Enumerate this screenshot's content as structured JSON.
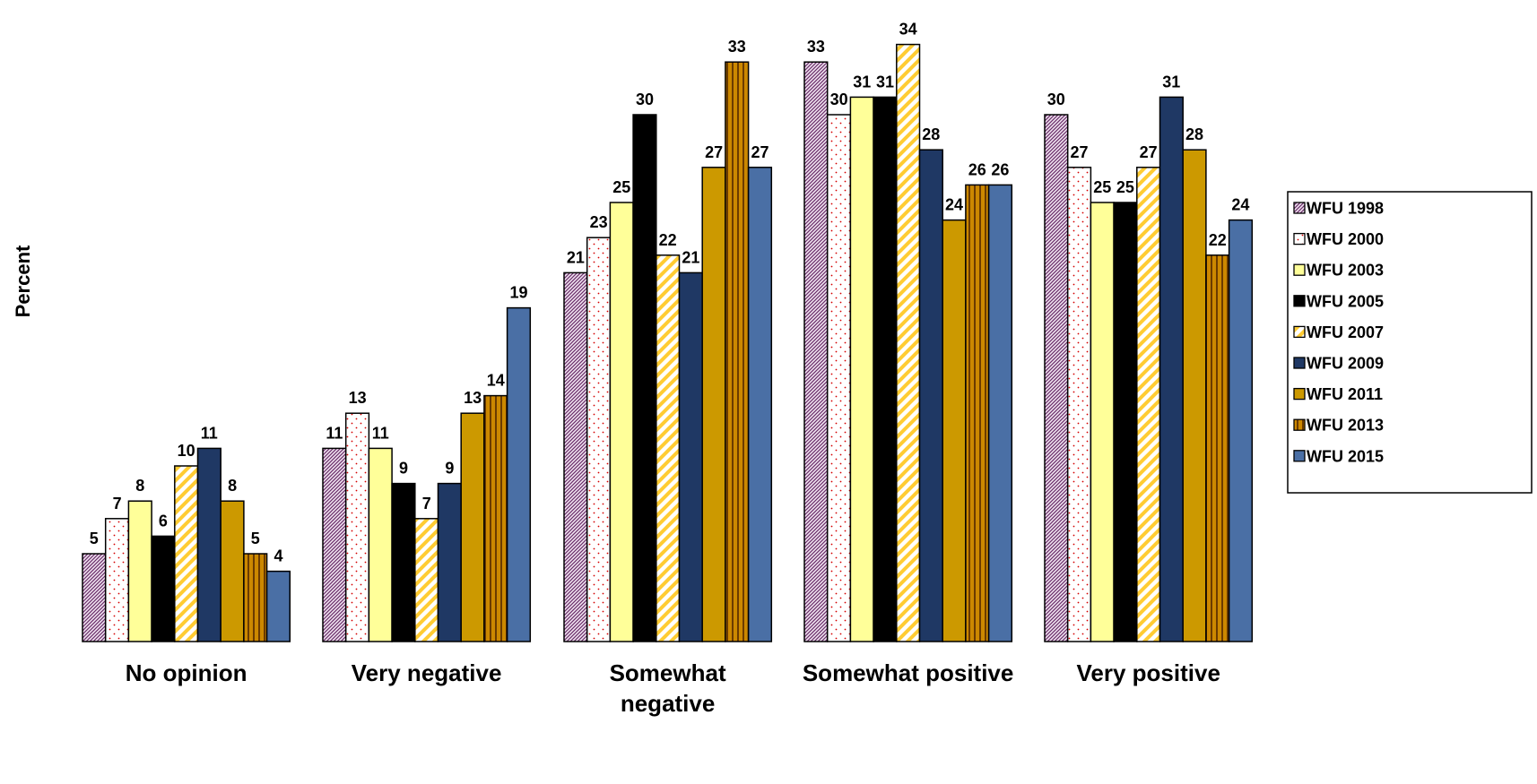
{
  "chart_data": {
    "type": "bar",
    "title": "",
    "xlabel": "",
    "ylabel": "Percent",
    "ylim": [
      0,
      36
    ],
    "grid": false,
    "legend_position": "right",
    "categories": [
      [
        "No opinion"
      ],
      [
        "Very negative"
      ],
      [
        "Somewhat",
        "negative"
      ],
      [
        "Somewhat positive"
      ],
      [
        "Very positive"
      ]
    ],
    "series": [
      {
        "name": "WFU 1998",
        "values": [
          5,
          11,
          21,
          33,
          30
        ],
        "color": "#c9a0c9",
        "pattern": "dense-diagonal"
      },
      {
        "name": "WFU 2000",
        "values": [
          7,
          13,
          23,
          30,
          27
        ],
        "color": "#ffffff",
        "pattern": "red-dots"
      },
      {
        "name": "WFU 2003",
        "values": [
          8,
          11,
          25,
          31,
          25
        ],
        "color": "#ffff99",
        "pattern": "solid"
      },
      {
        "name": "WFU 2005",
        "values": [
          6,
          9,
          30,
          31,
          25
        ],
        "color": "#000000",
        "pattern": "solid"
      },
      {
        "name": "WFU 2007",
        "values": [
          10,
          7,
          22,
          34,
          27
        ],
        "color": "#ffcc33",
        "pattern": "wide-diagonal"
      },
      {
        "name": "WFU 2009",
        "values": [
          11,
          9,
          21,
          28,
          31
        ],
        "color": "#1f3864",
        "pattern": "solid"
      },
      {
        "name": "WFU 2011",
        "values": [
          8,
          13,
          27,
          24,
          28
        ],
        "color": "#cc9900",
        "pattern": "solid"
      },
      {
        "name": "WFU 2013",
        "values": [
          5,
          14,
          33,
          26,
          22
        ],
        "color": "#cc8800",
        "pattern": "vertical-stripes"
      },
      {
        "name": "WFU 2015",
        "values": [
          4,
          19,
          27,
          26,
          24
        ],
        "color": "#4a6fa5",
        "pattern": "solid"
      }
    ]
  }
}
